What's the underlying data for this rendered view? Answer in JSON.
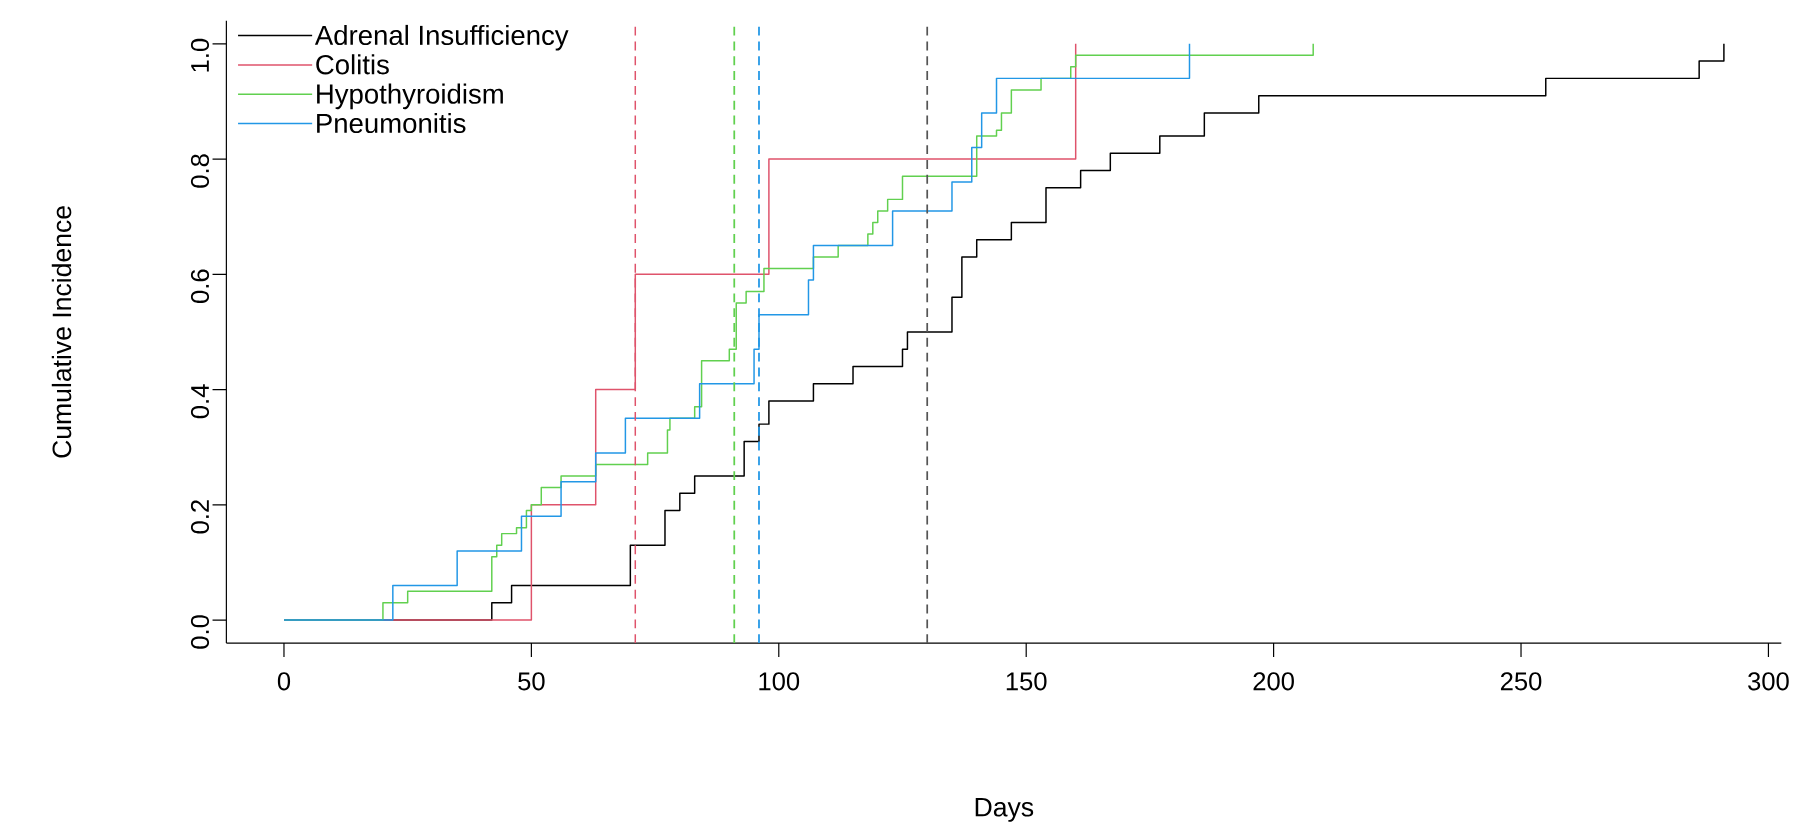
{
  "chart_data": {
    "type": "step",
    "xlabel": "Days",
    "ylabel": "Cumulative Incidence",
    "legend": "top left",
    "xlim": [
      -11.64,
      302.6
    ],
    "ylim": [
      -0.04,
      1.04
    ],
    "xticks": [
      0,
      50,
      100,
      150,
      200,
      250,
      300
    ],
    "yticks": [
      {
        "value": 0,
        "label": "0.0"
      },
      {
        "value": 0.2,
        "label": "0.2"
      },
      {
        "value": 0.4,
        "label": "0.4"
      },
      {
        "value": 0.6,
        "label": "0.6"
      },
      {
        "value": 0.8,
        "label": "0.8"
      },
      {
        "value": 1,
        "label": "1.0"
      }
    ],
    "series": [
      {
        "name": "Adrenal Insufficiency",
        "color": "#000000",
        "x": [
          0,
          42,
          46,
          70,
          77,
          80,
          83,
          93,
          96,
          98,
          107,
          115,
          125,
          126,
          135,
          137,
          140,
          147,
          154,
          161,
          167,
          177,
          186,
          197,
          255,
          286,
          291
        ],
        "values": [
          0,
          0.03,
          0.06,
          0.13,
          0.19,
          0.22,
          0.25,
          0.31,
          0.34,
          0.38,
          0.41,
          0.44,
          0.47,
          0.5,
          0.56,
          0.63,
          0.66,
          0.69,
          0.75,
          0.78,
          0.81,
          0.84,
          0.88,
          0.91,
          0.94,
          0.97,
          1.0
        ]
      },
      {
        "name": "Colitis",
        "color": "#df536b",
        "x": [
          0,
          50,
          63,
          71,
          98,
          160
        ],
        "values": [
          0,
          0.2,
          0.4,
          0.6,
          0.8,
          1.0
        ]
      },
      {
        "name": "Hypothyroidism",
        "color": "#61d04f",
        "x": [
          0,
          20,
          25,
          42,
          43,
          44,
          47,
          49,
          50,
          52,
          56,
          63,
          73.5,
          77.5,
          78,
          83,
          84.4,
          90,
          91.4,
          93.4,
          97,
          107,
          112,
          118,
          119,
          120,
          122,
          125,
          140,
          144,
          145,
          147,
          153,
          159,
          160,
          208
        ],
        "values": [
          0,
          0.03,
          0.05,
          0.11,
          0.13,
          0.15,
          0.16,
          0.19,
          0.2,
          0.23,
          0.25,
          0.27,
          0.29,
          0.33,
          0.35,
          0.37,
          0.45,
          0.47,
          0.55,
          0.57,
          0.61,
          0.63,
          0.65,
          0.67,
          0.69,
          0.71,
          0.73,
          0.77,
          0.84,
          0.85,
          0.88,
          0.92,
          0.94,
          0.96,
          0.98,
          1.0
        ]
      },
      {
        "name": "Pneumonitis",
        "color": "#2297e6",
        "x": [
          0,
          22,
          35,
          48,
          56,
          63,
          69,
          84,
          95,
          96,
          106,
          107,
          123,
          135,
          139,
          141,
          144,
          183
        ],
        "values": [
          0,
          0.06,
          0.12,
          0.18,
          0.24,
          0.29,
          0.35,
          0.41,
          0.47,
          0.53,
          0.59,
          0.65,
          0.71,
          0.76,
          0.82,
          0.88,
          0.94,
          1.0
        ]
      }
    ],
    "ref_lines": [
      {
        "axis": "x",
        "value": 71,
        "color": "#df536b",
        "line_style": "dashed"
      },
      {
        "axis": "x",
        "value": 91,
        "color": "#61d04f",
        "line_style": "dashed"
      },
      {
        "axis": "x",
        "value": 96,
        "color": "#2297e6",
        "line_style": "dashed"
      },
      {
        "axis": "x",
        "value": 130,
        "color": "#555555",
        "line_style": "dashed"
      }
    ]
  }
}
